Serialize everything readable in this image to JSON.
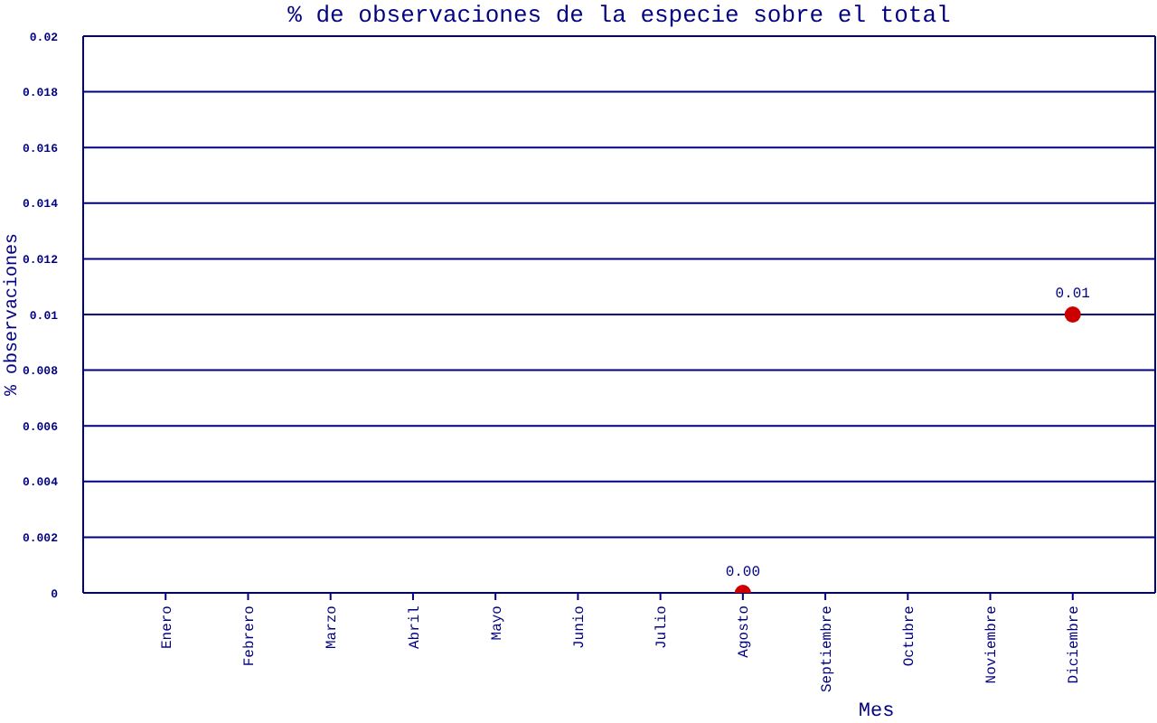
{
  "chart_data": {
    "type": "scatter",
    "title": "% de observaciones de la especie sobre el total",
    "xlabel": "Mes",
    "ylabel": "% observaciones",
    "categories": [
      "Enero",
      "Febrero",
      "Marzo",
      "Abril",
      "Mayo",
      "Junio",
      "Julio",
      "Agosto",
      "Septiembre",
      "Octubre",
      "Noviembre",
      "Diciembre"
    ],
    "values": [
      null,
      null,
      null,
      null,
      null,
      null,
      null,
      0,
      null,
      null,
      null,
      0.01
    ],
    "value_labels": [
      null,
      null,
      null,
      null,
      null,
      null,
      null,
      "0.00",
      null,
      null,
      null,
      "0.01"
    ],
    "color": "#cc0000",
    "marker": "circle",
    "ylim": [
      0,
      0.02
    ],
    "yticks": [
      0,
      0.002,
      0.004,
      0.006,
      0.008,
      0.01,
      0.012,
      0.014,
      0.016,
      0.018,
      0.02
    ],
    "grid": "y"
  }
}
